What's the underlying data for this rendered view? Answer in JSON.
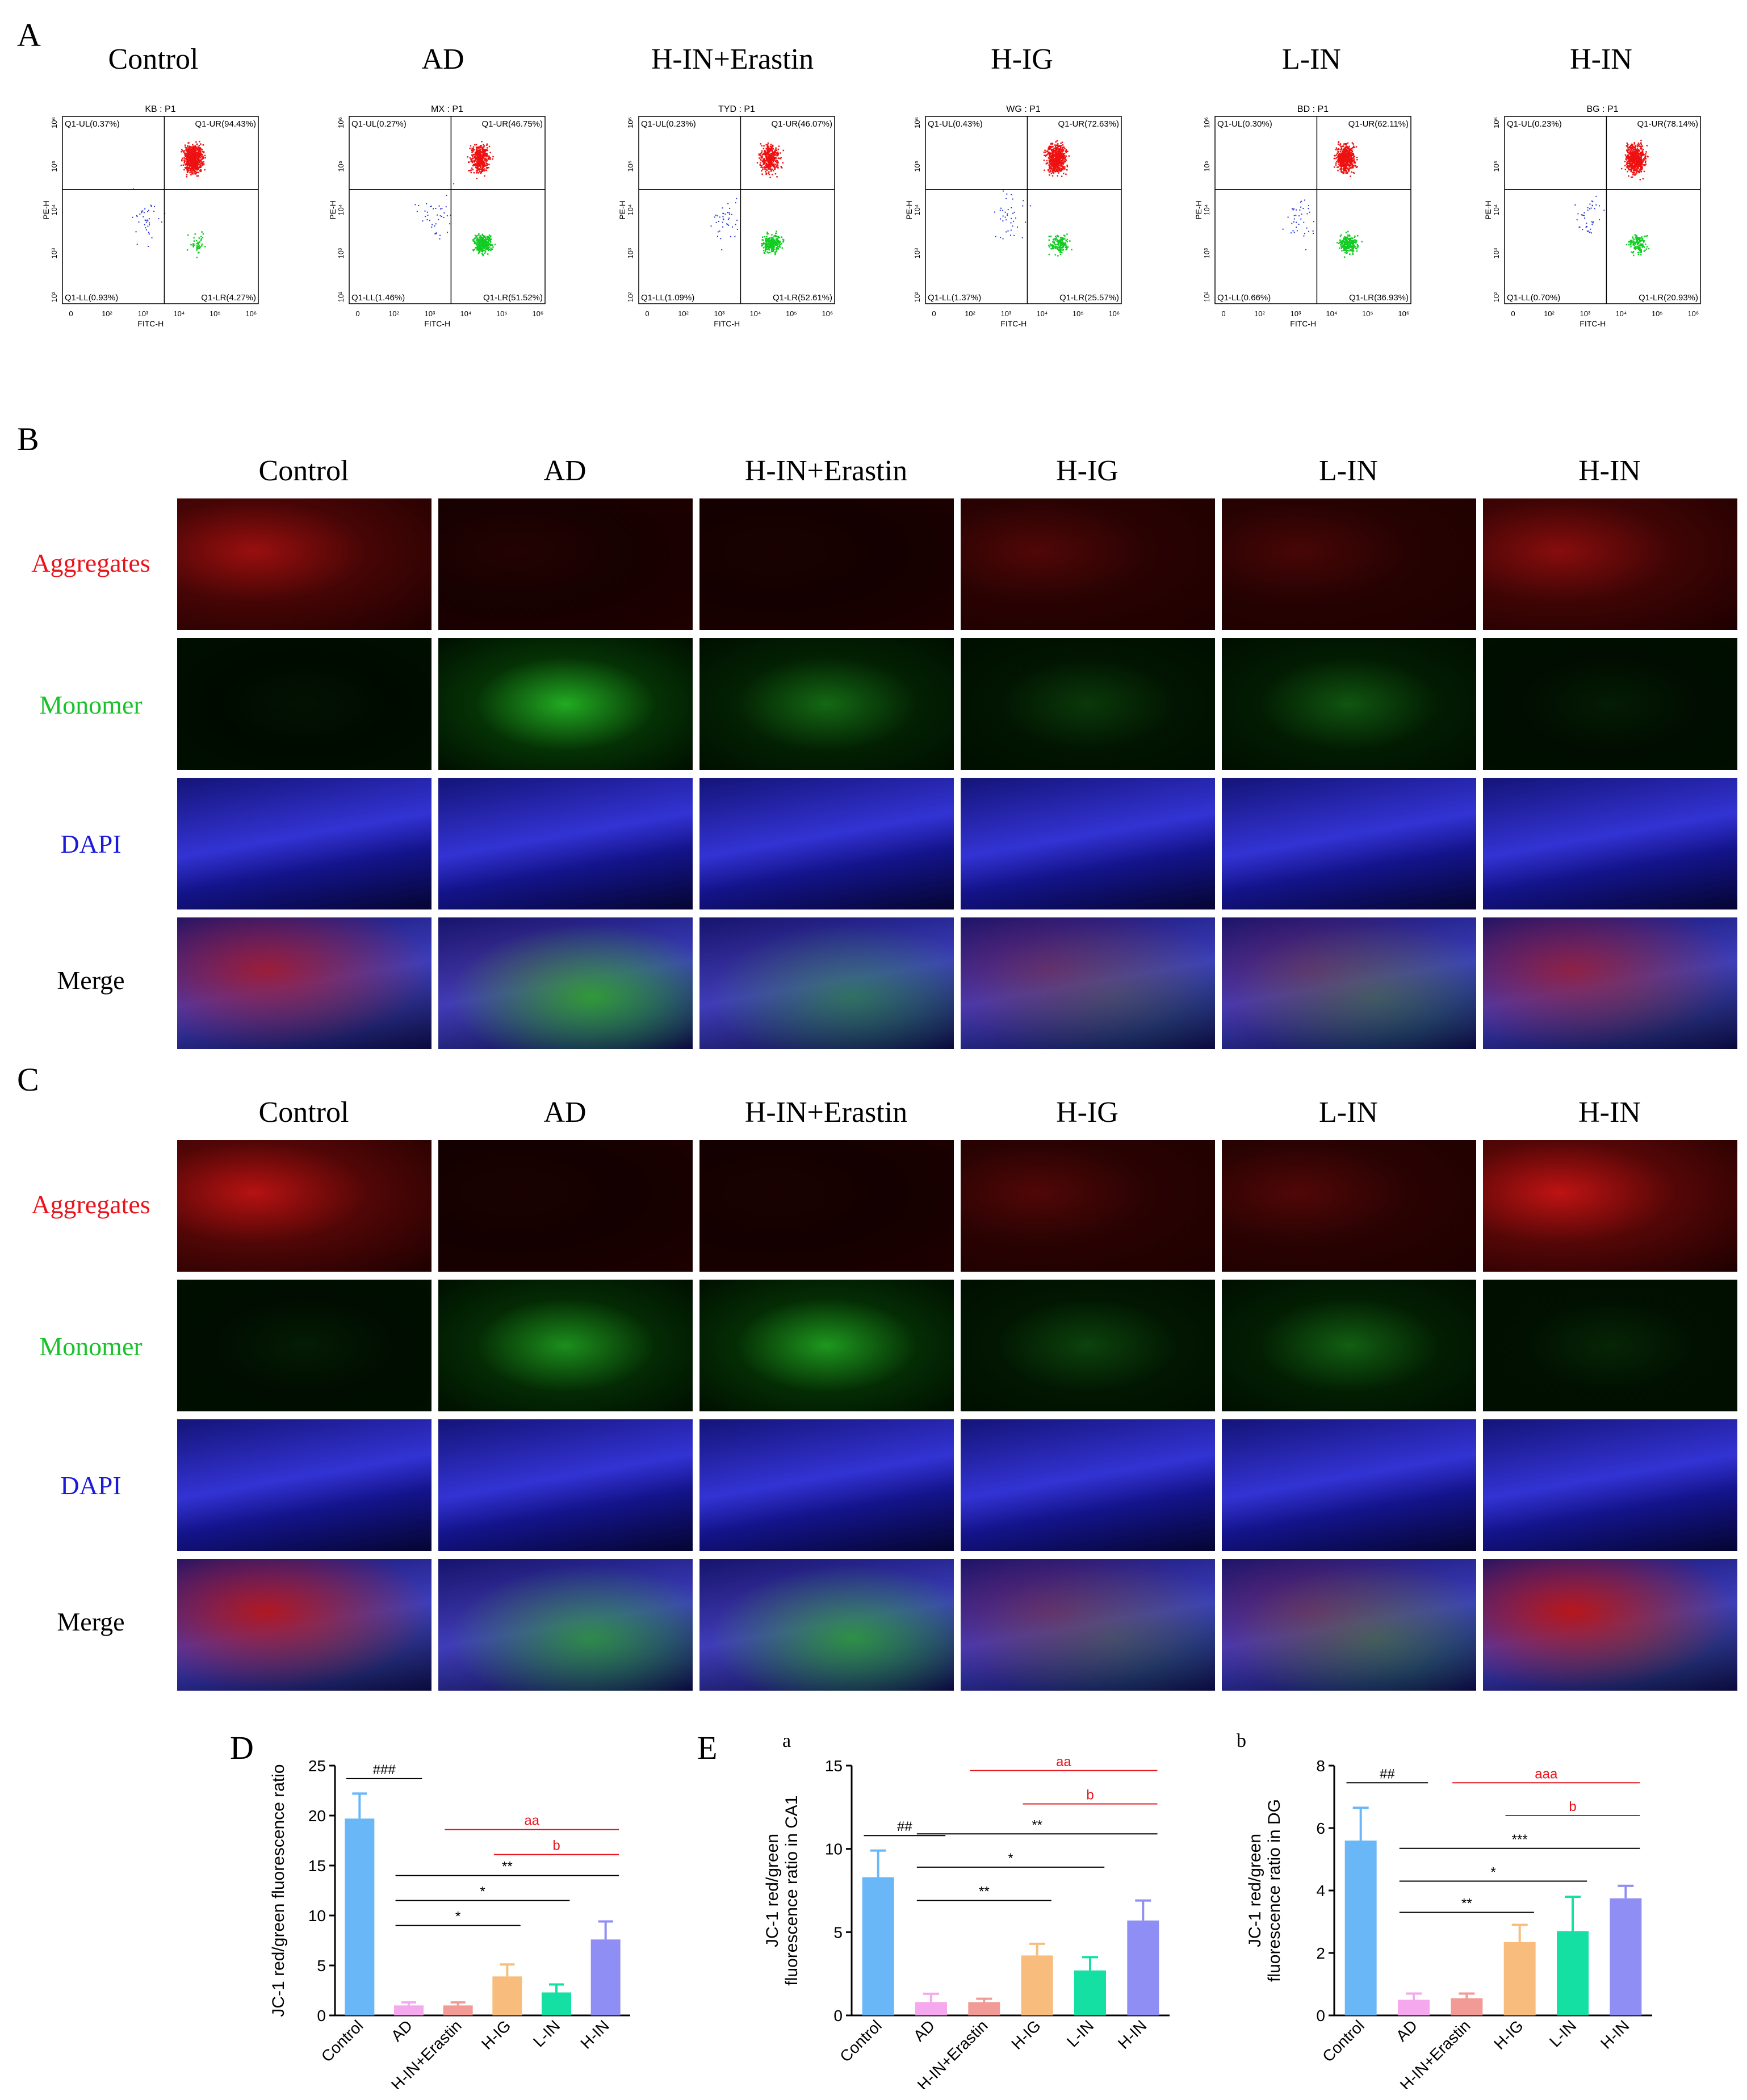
{
  "panels": {
    "A": "A",
    "B": "B",
    "C": "C",
    "D": "D",
    "E": "E",
    "Ea": "a",
    "Eb": "b"
  },
  "groups": [
    "Control",
    "AD",
    "H-IN+Erastin",
    "H-IG",
    "L-IN",
    "H-IN"
  ],
  "flow_plots": [
    {
      "code": "KB : P1",
      "ul": "Q1-UL(0.37%)",
      "ur": "Q1-UR(94.43%)",
      "ll": "Q1-LL(0.93%)",
      "lr": "Q1-LR(4.27%)"
    },
    {
      "code": "MX : P1",
      "ul": "Q1-UL(0.27%)",
      "ur": "Q1-UR(46.75%)",
      "ll": "Q1-LL(1.46%)",
      "lr": "Q1-LR(51.52%)"
    },
    {
      "code": "TYD : P1",
      "ul": "Q1-UL(0.23%)",
      "ur": "Q1-UR(46.07%)",
      "ll": "Q1-LL(1.09%)",
      "lr": "Q1-LR(52.61%)"
    },
    {
      "code": "WG : P1",
      "ul": "Q1-UL(0.43%)",
      "ur": "Q1-UR(72.63%)",
      "ll": "Q1-LL(1.37%)",
      "lr": "Q1-LR(25.57%)"
    },
    {
      "code": "BD : P1",
      "ul": "Q1-UL(0.30%)",
      "ur": "Q1-UR(62.11%)",
      "ll": "Q1-LL(0.66%)",
      "lr": "Q1-LR(36.93%)"
    },
    {
      "code": "BG : P1",
      "ul": "Q1-UL(0.23%)",
      "ur": "Q1-UR(78.14%)",
      "ll": "Q1-LL(0.70%)",
      "lr": "Q1-LR(20.93%)"
    }
  ],
  "flow_axes": {
    "x": "FITC-H",
    "y": "PE-H",
    "x_ticks": [
      "0",
      "10²",
      "10³",
      "10⁴",
      "10⁵",
      "10⁶"
    ],
    "y_ticks": [
      "10²",
      "10³",
      "10⁴",
      "10⁵",
      "10⁶"
    ]
  },
  "micro_rows": [
    {
      "label": "Aggregates",
      "color": "#e8141c"
    },
    {
      "label": "Monomer",
      "color": "#19c22a"
    },
    {
      "label": "DAPI",
      "color": "#1a1adb"
    },
    {
      "label": "Merge",
      "color": "#000000"
    }
  ],
  "chart_data": [
    {
      "type": "bar",
      "panel": "D",
      "ylabel": "JC-1 red/green fluorescence ratio",
      "categories": [
        "Control",
        "AD",
        "H-IN+Erastin",
        "H-IG",
        "L-IN",
        "H-IN"
      ],
      "values": [
        19.7,
        1.0,
        1.0,
        3.9,
        2.3,
        7.6
      ],
      "errors": [
        2.5,
        0.3,
        0.3,
        1.2,
        0.8,
        1.8
      ],
      "ylim": [
        0,
        25
      ],
      "yticks": [
        "0",
        "5",
        "10",
        "15",
        "20",
        "25"
      ],
      "colors": [
        "#6ab7f7",
        "#f5a8ee",
        "#f29b96",
        "#f8bd7d",
        "#14e0a4",
        "#8f8ef4"
      ],
      "significance": [
        {
          "label": "###",
          "from": 0,
          "to": 1,
          "color": "#000000"
        },
        {
          "label": "aa",
          "from": 2,
          "to": 5,
          "color": "#e8141c"
        },
        {
          "label": "b",
          "from": 3,
          "to": 5,
          "color": "#e8141c"
        },
        {
          "label": "**",
          "from": 1,
          "to": 5,
          "color": "#000000"
        },
        {
          "label": "*",
          "from": 1,
          "to": 4,
          "color": "#000000"
        },
        {
          "label": "*",
          "from": 1,
          "to": 3,
          "color": "#000000"
        }
      ]
    },
    {
      "type": "bar",
      "panel": "a",
      "ylabel": "JC-1 red/green fluorescence ratio in CA1",
      "categories": [
        "Control",
        "AD",
        "H-IN+Erastin",
        "H-IG",
        "L-IN",
        "H-IN"
      ],
      "values": [
        8.3,
        0.8,
        0.8,
        3.6,
        2.7,
        5.7
      ],
      "errors": [
        1.6,
        0.5,
        0.2,
        0.7,
        0.8,
        1.2
      ],
      "ylim": [
        0,
        15
      ],
      "yticks": [
        "0",
        "5",
        "10",
        "15"
      ],
      "colors": [
        "#6ab7f7",
        "#f5a8ee",
        "#f29b96",
        "#f8bd7d",
        "#14e0a4",
        "#8f8ef4"
      ],
      "significance": [
        {
          "label": "##",
          "from": 0,
          "to": 1,
          "color": "#000000"
        },
        {
          "label": "aa",
          "from": 2,
          "to": 5,
          "color": "#e8141c"
        },
        {
          "label": "b",
          "from": 3,
          "to": 5,
          "color": "#e8141c"
        },
        {
          "label": "**",
          "from": 1,
          "to": 5,
          "color": "#000000"
        },
        {
          "label": "*",
          "from": 1,
          "to": 4,
          "color": "#000000"
        },
        {
          "label": "**",
          "from": 1,
          "to": 3,
          "color": "#000000"
        }
      ]
    },
    {
      "type": "bar",
      "panel": "b",
      "ylabel": "JC-1 red/green fluorescence ratio in DG",
      "categories": [
        "Control",
        "AD",
        "H-IN+Erastin",
        "H-IG",
        "L-IN",
        "H-IN"
      ],
      "values": [
        5.6,
        0.5,
        0.55,
        2.35,
        2.7,
        3.75
      ],
      "errors": [
        1.05,
        0.2,
        0.15,
        0.55,
        1.1,
        0.4
      ],
      "ylim": [
        0,
        8
      ],
      "yticks": [
        "0",
        "2",
        "4",
        "6",
        "8"
      ],
      "colors": [
        "#6ab7f7",
        "#f5a8ee",
        "#f29b96",
        "#f8bd7d",
        "#14e0a4",
        "#8f8ef4"
      ],
      "significance": [
        {
          "label": "##",
          "from": 0,
          "to": 1,
          "color": "#000000"
        },
        {
          "label": "aaa",
          "from": 2,
          "to": 5,
          "color": "#e8141c"
        },
        {
          "label": "b",
          "from": 3,
          "to": 5,
          "color": "#e8141c"
        },
        {
          "label": "***",
          "from": 1,
          "to": 5,
          "color": "#000000"
        },
        {
          "label": "*",
          "from": 1,
          "to": 4,
          "color": "#000000"
        },
        {
          "label": "**",
          "from": 1,
          "to": 3,
          "color": "#000000"
        }
      ]
    }
  ]
}
